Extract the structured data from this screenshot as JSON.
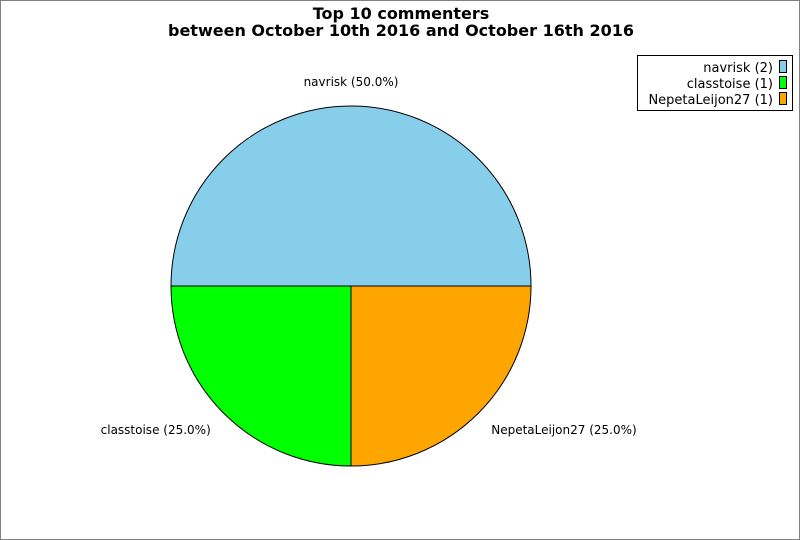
{
  "chart_data": {
    "type": "pie",
    "title_line1": "Top 10 commenters",
    "title_line2": "between October 10th 2016 and October 16th 2016",
    "legend_placement": "top-right",
    "slices": [
      {
        "label": "navrisk",
        "value": 2,
        "percent_label": "navrisk (50.0%)",
        "legend_label": "navrisk (2)",
        "color": "#87CEEB"
      },
      {
        "label": "classtoise",
        "value": 1,
        "percent_label": "classtoise (25.0%)",
        "legend_label": "classtoise (1)",
        "color": "#00FF00"
      },
      {
        "label": "NepetaLeijon27",
        "value": 1,
        "percent_label": "NepetaLeijon27 (25.0%)",
        "legend_label": "NepetaLeijon27 (1)",
        "color": "#FFA500"
      }
    ]
  }
}
